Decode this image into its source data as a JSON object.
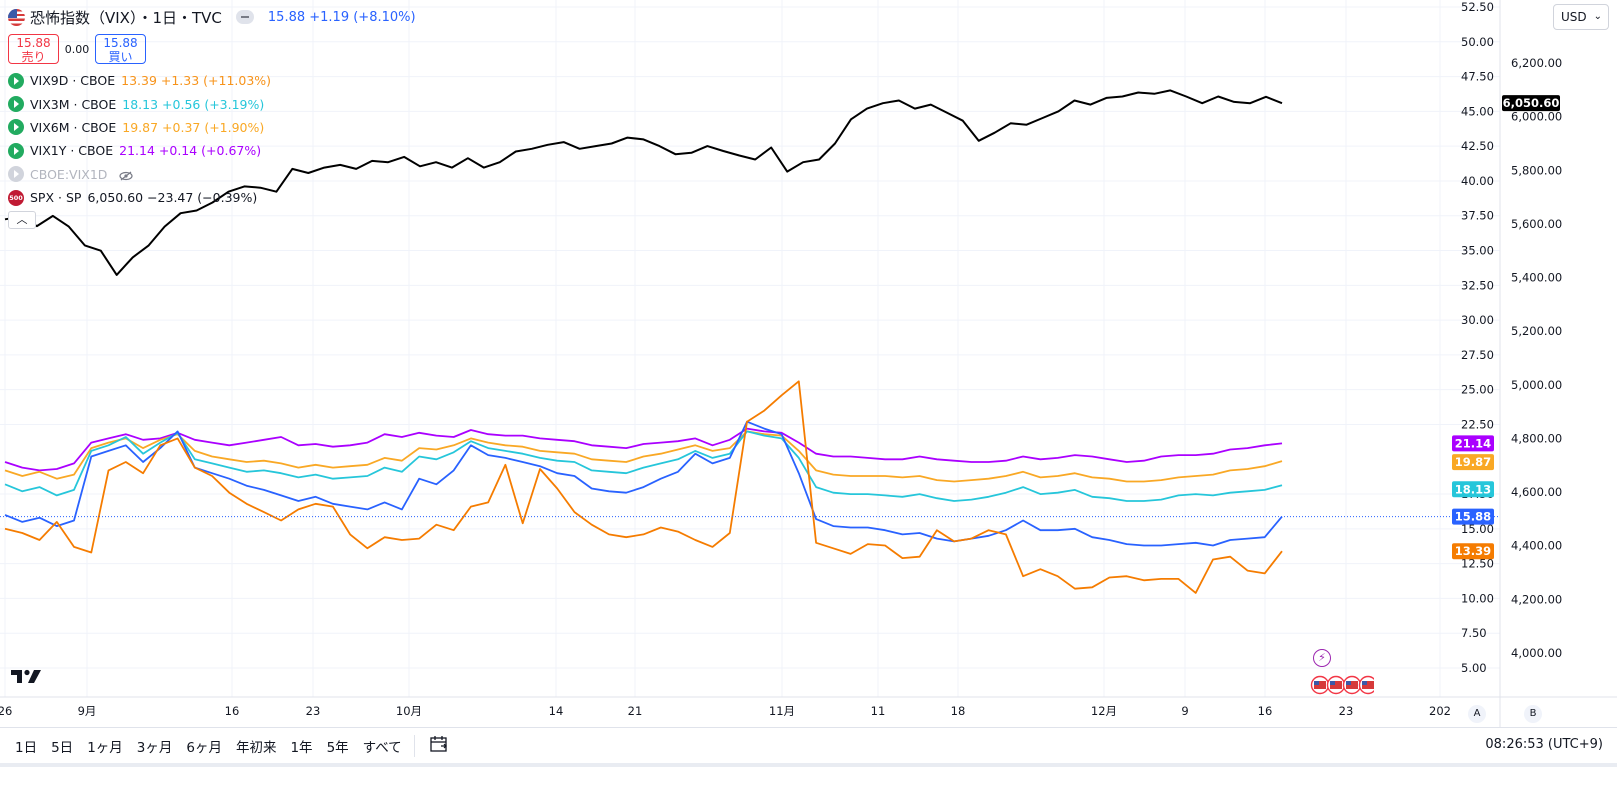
{
  "header": {
    "title": "恐怖指数（VIX）・1日・TVC",
    "quote": "15.88 +1.19 (+8.10%)",
    "sell_price": "15.88",
    "sell_label": "売り",
    "spread": "0.00",
    "buy_price": "15.88",
    "buy_label": "買い"
  },
  "indicators": [
    {
      "name": "VIX9D · CBOE",
      "value": "13.39 +1.33 (+11.03%)",
      "color": "#f7931a",
      "icon": "play-icon"
    },
    {
      "name": "VIX3M · CBOE",
      "value": "18.13 +0.56 (+3.19%)",
      "color": "#26c6da",
      "icon": "play-icon"
    },
    {
      "name": "VIX6M · CBOE",
      "value": "19.87 +0.37 (+1.90%)",
      "color": "#f9a825",
      "icon": "play-icon"
    },
    {
      "name": "VIX1Y · CBOE",
      "value": "21.14 +0.14 (+0.67%)",
      "color": "#aa00ff",
      "icon": "play-icon"
    },
    {
      "name": "CBOE:VIX1D",
      "value": "",
      "color": "#b2b5be",
      "icon": "v-icon",
      "hidden": true
    },
    {
      "name": "SPX · SP",
      "value": "6,050.60 −23.47 (−0.39%)",
      "color": "#000000",
      "icon": "sp500-icon"
    }
  ],
  "currency_select": "USD",
  "left_axis": {
    "ticks": [
      "52.50",
      "50.00",
      "47.50",
      "45.00",
      "42.50",
      "40.00",
      "37.50",
      "35.00",
      "32.50",
      "30.00",
      "27.50",
      "25.00",
      "22.50",
      "17.50",
      "15.00",
      "12.50",
      "10.00",
      "7.50",
      "5.00"
    ]
  },
  "right_axis": {
    "ticks": [
      "6,200.00",
      "6,000.00",
      "5,800.00",
      "5,600.00",
      "5,400.00",
      "5,200.00",
      "5,000.00",
      "4,800.00",
      "4,600.00",
      "4,400.00",
      "4,200.00",
      "4,000.00"
    ]
  },
  "time_axis": {
    "ticks": [
      "26",
      "9月",
      "16",
      "23",
      "10月",
      "14",
      "21",
      "11月",
      "11",
      "18",
      "12月",
      "9",
      "16",
      "23",
      "202"
    ]
  },
  "price_tags": [
    {
      "label": "6,050.60",
      "color": "#000000"
    },
    {
      "label": "21.14",
      "color": "#aa00ff"
    },
    {
      "label": "19.87",
      "color": "#f9a825"
    },
    {
      "label": "18.13",
      "color": "#26c6da"
    },
    {
      "label": "15.88",
      "color": "#2962ff"
    },
    {
      "label": "13.39",
      "color": "#f57c00"
    }
  ],
  "ranges": [
    "1日",
    "5日",
    "1ヶ月",
    "3ヶ月",
    "6ヶ月",
    "年初来",
    "1年",
    "5年",
    "すべて"
  ],
  "clock": "08:26:53 (UTC+9)",
  "scale_buttons": {
    "a": "A",
    "b": "B"
  },
  "chart_data": {
    "type": "line",
    "x_range": [
      "2024-08-26",
      "2024-12-17"
    ],
    "series": [
      {
        "name": "SPX · SP",
        "axis": "right",
        "color": "#000000",
        "values": [
          5617,
          5627,
          5592,
          5630,
          5590,
          5520,
          5500,
          5410,
          5475,
          5520,
          5590,
          5640,
          5650,
          5680,
          5720,
          5740,
          5735,
          5720,
          5805,
          5790,
          5810,
          5820,
          5805,
          5835,
          5830,
          5850,
          5815,
          5830,
          5810,
          5845,
          5810,
          5830,
          5870,
          5880,
          5895,
          5905,
          5880,
          5890,
          5900,
          5922,
          5915,
          5890,
          5860,
          5865,
          5890,
          5872,
          5855,
          5840,
          5885,
          5795,
          5830,
          5840,
          5900,
          5990,
          6030,
          6050,
          6060,
          6030,
          6045,
          6015,
          5985,
          5910,
          5940,
          5975,
          5970,
          5995,
          6020,
          6060,
          6045,
          6070,
          6075,
          6090,
          6085,
          6098,
          6075,
          6050,
          6075,
          6055,
          6050,
          6074,
          6050
        ]
      },
      {
        "name": "VIX1Y · CBOE",
        "axis": "left",
        "color": "#aa00ff",
        "values": [
          19.8,
          19.4,
          19.2,
          19.3,
          19.7,
          21.2,
          21.5,
          21.8,
          21.4,
          21.5,
          21.9,
          21.4,
          21.2,
          21.0,
          21.2,
          21.4,
          21.6,
          21.0,
          21.1,
          20.9,
          21.0,
          21.2,
          21.8,
          21.6,
          21.9,
          21.7,
          21.6,
          22.1,
          21.8,
          21.7,
          21.7,
          21.5,
          21.4,
          21.3,
          21.0,
          20.9,
          20.8,
          21.1,
          21.2,
          21.3,
          21.5,
          21.0,
          21.4,
          22.2,
          22.0,
          21.9,
          21.2,
          20.4,
          20.2,
          20.2,
          20.1,
          20.0,
          20.0,
          20.2,
          20.0,
          19.9,
          19.8,
          19.8,
          19.9,
          20.2,
          20.0,
          20.1,
          20.3,
          20.2,
          20.0,
          19.8,
          19.9,
          20.2,
          20.3,
          20.3,
          20.4,
          20.7,
          20.8,
          21.0,
          21.14
        ]
      },
      {
        "name": "VIX6M · CBOE",
        "axis": "left",
        "color": "#f9a825",
        "values": [
          19.2,
          18.8,
          19.1,
          18.6,
          18.9,
          20.8,
          21.2,
          21.5,
          20.8,
          21.4,
          21.8,
          20.6,
          20.2,
          20.0,
          19.8,
          19.9,
          19.7,
          19.4,
          19.6,
          19.4,
          19.5,
          19.6,
          20.1,
          19.9,
          20.8,
          20.7,
          21.0,
          21.5,
          21.2,
          21.0,
          20.9,
          20.6,
          20.5,
          20.4,
          20.0,
          19.9,
          19.8,
          20.2,
          20.4,
          20.7,
          21.0,
          20.6,
          20.8,
          22.0,
          21.8,
          21.7,
          20.6,
          19.2,
          18.9,
          18.8,
          18.8,
          18.8,
          18.7,
          18.8,
          18.5,
          18.4,
          18.5,
          18.6,
          18.8,
          19.1,
          18.7,
          18.8,
          19.0,
          18.7,
          18.6,
          18.4,
          18.4,
          18.5,
          18.7,
          18.8,
          18.9,
          19.2,
          19.3,
          19.5,
          19.87
        ]
      },
      {
        "name": "VIX3M · CBOE",
        "axis": "left",
        "color": "#26c6da",
        "values": [
          18.2,
          17.7,
          18.0,
          17.4,
          17.8,
          20.6,
          21.0,
          21.6,
          20.4,
          21.2,
          21.9,
          20.0,
          19.7,
          19.4,
          19.1,
          19.2,
          19.0,
          18.7,
          18.9,
          18.6,
          18.7,
          18.8,
          19.4,
          19.1,
          20.2,
          20.0,
          20.5,
          21.3,
          20.8,
          20.6,
          20.4,
          20.1,
          19.9,
          19.8,
          19.2,
          19.1,
          19.0,
          19.4,
          19.7,
          20.0,
          20.6,
          20.1,
          20.4,
          22.0,
          21.7,
          21.5,
          20.1,
          18.0,
          17.6,
          17.5,
          17.5,
          17.4,
          17.3,
          17.5,
          17.2,
          17.0,
          17.1,
          17.3,
          17.6,
          18.0,
          17.5,
          17.6,
          17.8,
          17.3,
          17.2,
          17.0,
          17.0,
          17.1,
          17.4,
          17.5,
          17.4,
          17.6,
          17.7,
          17.8,
          18.13
        ]
      },
      {
        "name": "VIX · TVC",
        "axis": "left",
        "color": "#2962ff",
        "values": [
          16.0,
          15.5,
          15.8,
          15.2,
          15.6,
          20.2,
          20.6,
          21.0,
          19.8,
          20.8,
          22.0,
          19.4,
          19.0,
          18.6,
          18.1,
          17.8,
          17.4,
          17.0,
          17.3,
          16.8,
          16.6,
          16.4,
          16.9,
          16.4,
          18.6,
          18.2,
          19.2,
          21.0,
          20.3,
          20.1,
          19.8,
          19.5,
          19.0,
          18.8,
          17.9,
          17.7,
          17.6,
          18.0,
          18.6,
          19.1,
          20.4,
          19.7,
          20.1,
          22.7,
          22.2,
          21.8,
          19.0,
          15.7,
          15.2,
          15.1,
          15.1,
          14.9,
          14.6,
          14.7,
          14.3,
          14.1,
          14.3,
          14.5,
          14.9,
          15.6,
          14.9,
          14.9,
          15.0,
          14.4,
          14.2,
          13.9,
          13.8,
          13.8,
          13.9,
          14.0,
          13.8,
          14.2,
          14.3,
          14.4,
          15.88
        ]
      },
      {
        "name": "VIX9D · CBOE",
        "axis": "left",
        "color": "#f57c00",
        "values": [
          15.0,
          14.7,
          14.2,
          15.5,
          13.7,
          13.3,
          19.2,
          19.8,
          19.0,
          21.0,
          21.5,
          19.4,
          18.8,
          17.6,
          16.8,
          16.2,
          15.6,
          16.4,
          16.8,
          16.6,
          14.6,
          13.6,
          14.4,
          14.2,
          14.3,
          15.3,
          14.9,
          16.6,
          16.9,
          19.6,
          15.4,
          19.3,
          17.9,
          16.2,
          15.3,
          14.6,
          14.4,
          14.6,
          15.1,
          14.8,
          14.2,
          13.7,
          14.7,
          22.7,
          23.5,
          24.6,
          25.6,
          14.0,
          13.6,
          13.2,
          13.9,
          13.8,
          12.9,
          13.0,
          14.9,
          14.1,
          14.3,
          14.9,
          14.6,
          11.6,
          12.1,
          11.6,
          10.7,
          10.8,
          11.5,
          11.6,
          11.3,
          11.4,
          11.4,
          10.4,
          12.8,
          13.0,
          12.0,
          11.8,
          13.39
        ]
      }
    ]
  }
}
